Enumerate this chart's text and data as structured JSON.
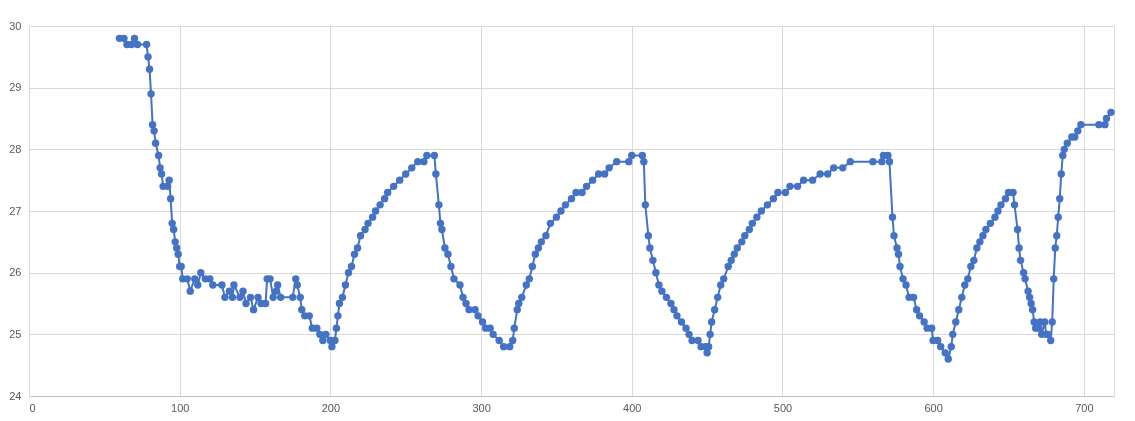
{
  "chart_data": {
    "type": "line",
    "marker": "circle",
    "line_style": "solid",
    "grid": true,
    "xlim": [
      0,
      720
    ],
    "xticks": [
      0,
      100,
      200,
      300,
      400,
      500,
      600,
      700
    ],
    "ylim": [
      24,
      30
    ],
    "yticks": [
      24,
      25,
      26,
      27,
      28,
      29,
      30
    ],
    "x": [
      60,
      63,
      65,
      68,
      70,
      72,
      78,
      79,
      80,
      81,
      82,
      83,
      84,
      86,
      87,
      88,
      89,
      92,
      93,
      94,
      95,
      96,
      97,
      98,
      99,
      100,
      101,
      102,
      105,
      107,
      110,
      112,
      114,
      117,
      120,
      122,
      128,
      130,
      133,
      135,
      136,
      140,
      142,
      144,
      147,
      149,
      152,
      154,
      157,
      158,
      160,
      162,
      164,
      165,
      167,
      175,
      177,
      178,
      180,
      181,
      183,
      186,
      188,
      191,
      193,
      195,
      197,
      200,
      201,
      203,
      204,
      205,
      206,
      208,
      210,
      212,
      214,
      216,
      218,
      220,
      223,
      225,
      228,
      230,
      233,
      236,
      238,
      242,
      246,
      250,
      254,
      258,
      262,
      264,
      269,
      270,
      272,
      273,
      274,
      276,
      278,
      280,
      282,
      286,
      288,
      290,
      292,
      296,
      298,
      301,
      303,
      306,
      308,
      312,
      315,
      319,
      321,
      322,
      324,
      325,
      327,
      330,
      332,
      334,
      336,
      338,
      340,
      343,
      346,
      350,
      353,
      356,
      360,
      363,
      367,
      370,
      374,
      378,
      382,
      385,
      390,
      398,
      400,
      407,
      408,
      409,
      411,
      412,
      414,
      416,
      418,
      420,
      423,
      426,
      428,
      430,
      433,
      436,
      438,
      440,
      444,
      446,
      449,
      450,
      451,
      452,
      453,
      455,
      457,
      459,
      461,
      464,
      466,
      468,
      470,
      473,
      475,
      478,
      480,
      483,
      486,
      490,
      494,
      497,
      502,
      505,
      510,
      514,
      520,
      525,
      530,
      534,
      540,
      545,
      560,
      566,
      567,
      570,
      571,
      573,
      574,
      576,
      577,
      578,
      580,
      582,
      584,
      587,
      589,
      591,
      594,
      596,
      599,
      600,
      603,
      605,
      608,
      610,
      612,
      613,
      615,
      617,
      619,
      621,
      623,
      625,
      627,
      629,
      631,
      633,
      635,
      638,
      641,
      643,
      645,
      648,
      650,
      653,
      654,
      656,
      657,
      658,
      660,
      661,
      663,
      664,
      665,
      666,
      667,
      668,
      670,
      671,
      672,
      674,
      675,
      676,
      678,
      679,
      680,
      681,
      682,
      683,
      684,
      685,
      686,
      687,
      689,
      692,
      694,
      696,
      698,
      710,
      714,
      715,
      718
    ],
    "series": [
      {
        "color": "#4472c4",
        "values": [
          29.8,
          29.8,
          29.7,
          29.7,
          29.8,
          29.7,
          29.7,
          29.5,
          29.3,
          28.9,
          28.4,
          28.3,
          28.1,
          27.9,
          27.7,
          27.6,
          27.4,
          27.4,
          27.5,
          27.2,
          26.8,
          26.7,
          26.5,
          26.4,
          26.3,
          26.1,
          26.1,
          25.9,
          25.9,
          25.7,
          25.9,
          25.8,
          26.0,
          25.9,
          25.9,
          25.8,
          25.8,
          25.6,
          25.7,
          25.6,
          25.8,
          25.6,
          25.7,
          25.5,
          25.6,
          25.4,
          25.6,
          25.5,
          25.5,
          25.9,
          25.9,
          25.6,
          25.7,
          25.8,
          25.6,
          25.6,
          25.9,
          25.8,
          25.6,
          25.4,
          25.3,
          25.3,
          25.1,
          25.1,
          25.0,
          24.9,
          25.0,
          24.9,
          24.8,
          24.9,
          25.1,
          25.3,
          25.5,
          25.6,
          25.8,
          26.0,
          26.1,
          26.3,
          26.4,
          26.6,
          26.7,
          26.8,
          26.9,
          27.0,
          27.1,
          27.2,
          27.3,
          27.4,
          27.5,
          27.6,
          27.7,
          27.8,
          27.8,
          27.9,
          27.9,
          27.6,
          27.1,
          26.8,
          26.7,
          26.4,
          26.3,
          26.1,
          25.9,
          25.8,
          25.6,
          25.5,
          25.4,
          25.4,
          25.3,
          25.2,
          25.1,
          25.1,
          25.0,
          24.9,
          24.8,
          24.8,
          24.9,
          25.1,
          25.4,
          25.5,
          25.6,
          25.8,
          25.9,
          26.1,
          26.3,
          26.4,
          26.5,
          26.6,
          26.8,
          26.9,
          27.0,
          27.1,
          27.2,
          27.3,
          27.3,
          27.4,
          27.5,
          27.6,
          27.6,
          27.7,
          27.8,
          27.8,
          27.9,
          27.9,
          27.8,
          27.1,
          26.6,
          26.4,
          26.2,
          26.0,
          25.8,
          25.7,
          25.6,
          25.5,
          25.4,
          25.3,
          25.2,
          25.1,
          25.0,
          24.9,
          24.9,
          24.8,
          24.8,
          24.7,
          24.8,
          25.0,
          25.2,
          25.4,
          25.6,
          25.8,
          25.9,
          26.1,
          26.2,
          26.3,
          26.4,
          26.5,
          26.6,
          26.7,
          26.8,
          26.9,
          27.0,
          27.1,
          27.2,
          27.3,
          27.3,
          27.4,
          27.4,
          27.5,
          27.5,
          27.6,
          27.6,
          27.7,
          27.7,
          27.8,
          27.8,
          27.8,
          27.9,
          27.9,
          27.8,
          26.9,
          26.6,
          26.4,
          26.3,
          26.1,
          25.9,
          25.8,
          25.6,
          25.6,
          25.4,
          25.3,
          25.2,
          25.1,
          25.1,
          24.9,
          24.9,
          24.8,
          24.7,
          24.6,
          24.8,
          25.0,
          25.2,
          25.4,
          25.6,
          25.8,
          25.9,
          26.1,
          26.2,
          26.4,
          26.5,
          26.6,
          26.7,
          26.8,
          26.9,
          27.0,
          27.1,
          27.2,
          27.3,
          27.3,
          27.1,
          26.7,
          26.4,
          26.2,
          26.0,
          25.9,
          25.7,
          25.6,
          25.5,
          25.4,
          25.2,
          25.1,
          25.1,
          25.2,
          25.0,
          25.2,
          25.0,
          25.0,
          24.9,
          25.2,
          25.9,
          26.4,
          26.6,
          26.9,
          27.2,
          27.6,
          27.9,
          28.0,
          28.1,
          28.2,
          28.2,
          28.3,
          28.4,
          28.4,
          28.4,
          28.5,
          28.6
        ]
      }
    ]
  }
}
